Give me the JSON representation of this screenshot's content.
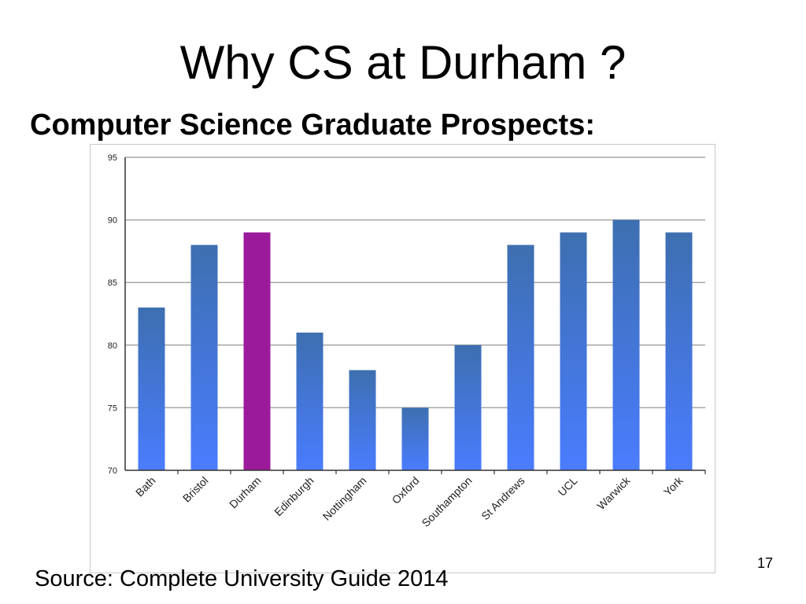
{
  "slide": {
    "title": "Why CS at Durham ?",
    "subtitle": "Computer Science Graduate Prospects:",
    "source": "Source: Complete University Guide 2014",
    "page_number": "17"
  },
  "chart_data": {
    "type": "bar",
    "title": "",
    "xlabel": "",
    "ylabel": "",
    "categories": [
      "Bath",
      "Bristol",
      "Durham",
      "Edinburgh",
      "Nottingham",
      "Oxford",
      "Southampton",
      "St Andrews",
      "UCL",
      "Warwick",
      "York"
    ],
    "values": [
      83,
      88,
      89,
      81,
      78,
      75,
      80,
      88,
      89,
      90,
      89
    ],
    "highlight": "Durham",
    "ylim": [
      70,
      95
    ],
    "yticks": [
      70,
      75,
      80,
      85,
      90,
      95
    ],
    "grid": true,
    "legend": "none",
    "colors": {
      "bar_top": "#3d6fb0",
      "bar_bottom": "#4a7cff",
      "highlight": "#9b1a9b",
      "grid": "#a6a6a6",
      "axis": "#333333"
    }
  }
}
